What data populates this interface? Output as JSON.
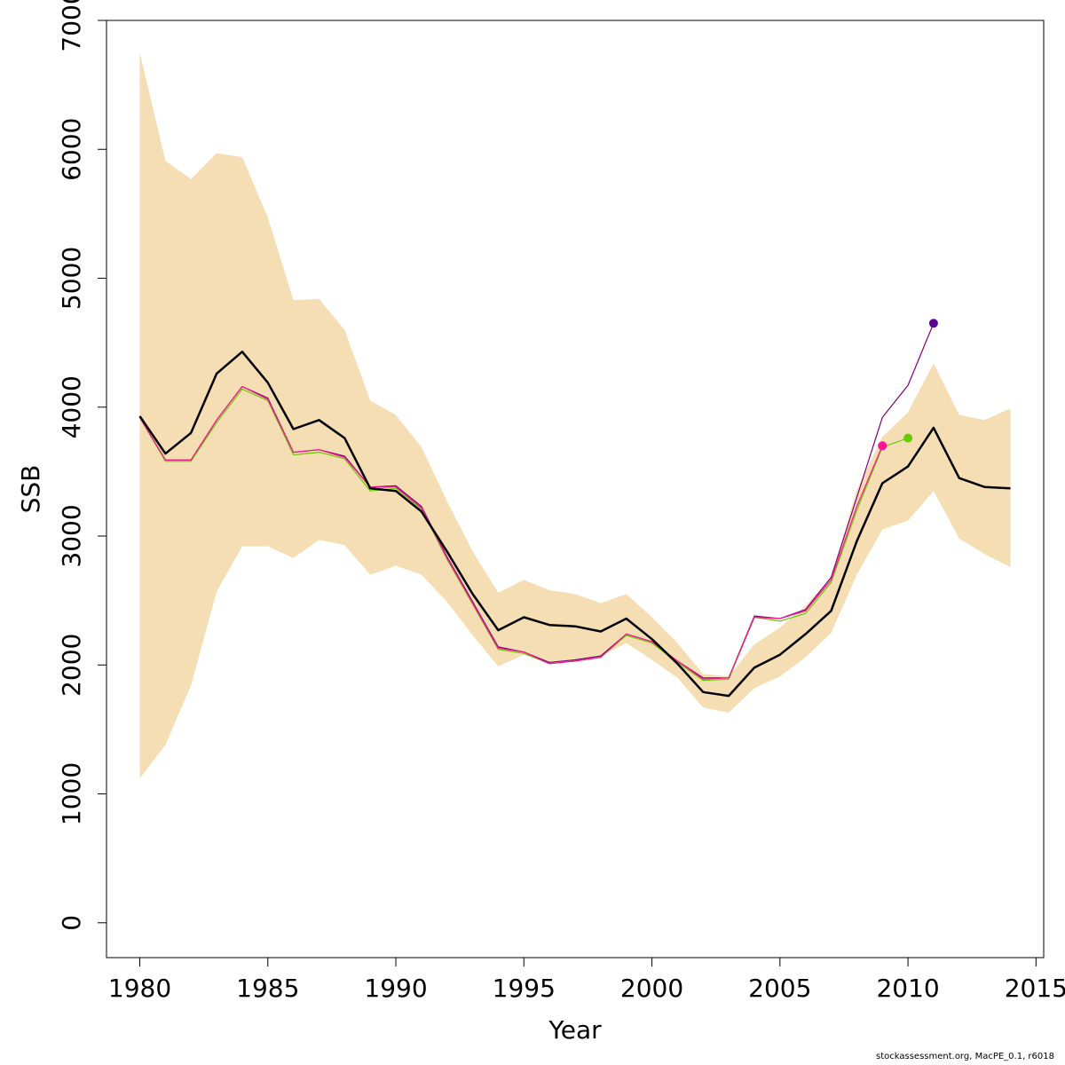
{
  "chart_data": {
    "type": "line",
    "xlabel": "Year",
    "ylabel": "SSB",
    "xlim": [
      1978.7,
      2015.3
    ],
    "ylim": [
      -270,
      7000
    ],
    "x_ticks": [
      1980,
      1985,
      1990,
      1995,
      2000,
      2005,
      2010,
      2015
    ],
    "y_ticks": [
      0,
      1000,
      2000,
      3000,
      4000,
      5000,
      6000,
      7000
    ],
    "x_tick_labels": [
      "1980",
      "1985",
      "1990",
      "1995",
      "2000",
      "2005",
      "2010",
      "2015"
    ],
    "y_tick_labels": [
      "0",
      "1000",
      "2000",
      "3000",
      "4000",
      "5000",
      "6000",
      "7000"
    ],
    "grid": false,
    "legend": "none",
    "band": {
      "color": "#f5deb3",
      "x": [
        1980,
        1981,
        1982,
        1983,
        1984,
        1985,
        1986,
        1987,
        1988,
        1989,
        1990,
        1991,
        1992,
        1993,
        1994,
        1995,
        1996,
        1997,
        1998,
        1999,
        2000,
        2001,
        2002,
        2003,
        2004,
        2005,
        2006,
        2007,
        2008,
        2009,
        2010,
        2011,
        2012,
        2013,
        2014
      ],
      "upper": [
        6750,
        5910,
        5770,
        5970,
        5940,
        5470,
        4830,
        4840,
        4600,
        4050,
        3940,
        3690,
        3270,
        2880,
        2560,
        2660,
        2580,
        2550,
        2480,
        2550,
        2370,
        2170,
        1930,
        1910,
        2160,
        2290,
        2460,
        2680,
        3360,
        3770,
        3960,
        4340,
        3940,
        3900,
        3990
      ],
      "lower": [
        1120,
        1380,
        1840,
        2570,
        2920,
        2920,
        2830,
        2970,
        2930,
        2700,
        2770,
        2700,
        2490,
        2230,
        1990,
        2080,
        2020,
        2030,
        2070,
        2170,
        2040,
        1900,
        1670,
        1630,
        1820,
        1910,
        2060,
        2250,
        2700,
        3050,
        3120,
        3350,
        2980,
        2860,
        2760
      ]
    },
    "series": [
      {
        "color": "#000000",
        "x": [
          1980,
          1981,
          1982,
          1983,
          1984,
          1985,
          1986,
          1987,
          1988,
          1989,
          1990,
          1991,
          1992,
          1993,
          1994,
          1995,
          1996,
          1997,
          1998,
          1999,
          2000,
          2001,
          2002,
          2003,
          2004,
          2005,
          2006,
          2007,
          2008,
          2009,
          2010,
          2011,
          2012,
          2013,
          2014
        ],
        "values": [
          3930,
          3640,
          3800,
          4260,
          4430,
          4190,
          3830,
          3900,
          3760,
          3370,
          3350,
          3190,
          2880,
          2550,
          2270,
          2370,
          2310,
          2300,
          2260,
          2360,
          2200,
          2010,
          1790,
          1760,
          1980,
          2080,
          2240,
          2420,
          2960,
          3410,
          3540,
          3840,
          3450,
          3380,
          3370
        ]
      },
      {
        "color": "#800080",
        "x": [
          1980,
          1981,
          1982,
          1983,
          1984,
          1985,
          1986,
          1987,
          1988,
          1989,
          1990,
          1991,
          1992,
          1993,
          1994,
          1995,
          1996,
          1997,
          1998,
          1999,
          2000,
          2001,
          2002,
          2003,
          2004,
          2005,
          2006,
          2007,
          2008,
          2009,
          2010,
          2011
        ],
        "values": [
          3920,
          3590,
          3590,
          3900,
          4160,
          4070,
          3650,
          3670,
          3620,
          3380,
          3390,
          3230,
          2840,
          2490,
          2140,
          2100,
          2020,
          2040,
          2070,
          2240,
          2180,
          2030,
          1900,
          1900,
          2380,
          2360,
          2430,
          2680,
          3300,
          3920,
          4170,
          4650
        ]
      },
      {
        "color": "#66cc00",
        "x": [
          1980,
          1981,
          1982,
          1983,
          1984,
          1985,
          1986,
          1987,
          1988,
          1989,
          1990,
          1991,
          1992,
          1993,
          1994,
          1995,
          1996,
          1997,
          1998,
          1999,
          2000,
          2001,
          2002,
          2003,
          2004,
          2005,
          2006,
          2007,
          2008,
          2009,
          2010
        ],
        "values": [
          3920,
          3580,
          3580,
          3880,
          4140,
          4050,
          3630,
          3650,
          3600,
          3350,
          3370,
          3210,
          2820,
          2470,
          2120,
          2090,
          2010,
          2030,
          2060,
          2230,
          2170,
          2020,
          1880,
          1890,
          2370,
          2340,
          2400,
          2640,
          3200,
          3690,
          3760
        ]
      },
      {
        "color": "#ff1493",
        "x": [
          1980,
          1981,
          1982,
          1983,
          1984,
          1985,
          1986,
          1987,
          1988,
          1989,
          1990,
          1991,
          1992,
          1993,
          1994,
          1995,
          1996,
          1997,
          1998,
          1999,
          2000,
          2001,
          2002,
          2003,
          2004,
          2005,
          2006,
          2007,
          2008,
          2009
        ],
        "values": [
          3920,
          3590,
          3590,
          3900,
          4160,
          4060,
          3650,
          3670,
          3610,
          3380,
          3380,
          3220,
          2830,
          2480,
          2130,
          2100,
          2010,
          2030,
          2060,
          2240,
          2180,
          2030,
          1890,
          1900,
          2370,
          2360,
          2420,
          2660,
          3230,
          3700
        ]
      }
    ],
    "endpoints": [
      {
        "x": 2011,
        "y": 4650,
        "color": "#5a0096"
      },
      {
        "x": 2010,
        "y": 3760,
        "color": "#66cc00"
      },
      {
        "x": 2009,
        "y": 3700,
        "color": "#ff1493"
      }
    ]
  },
  "credit": "stockassessment.org, MacPE_0.1, r6018"
}
